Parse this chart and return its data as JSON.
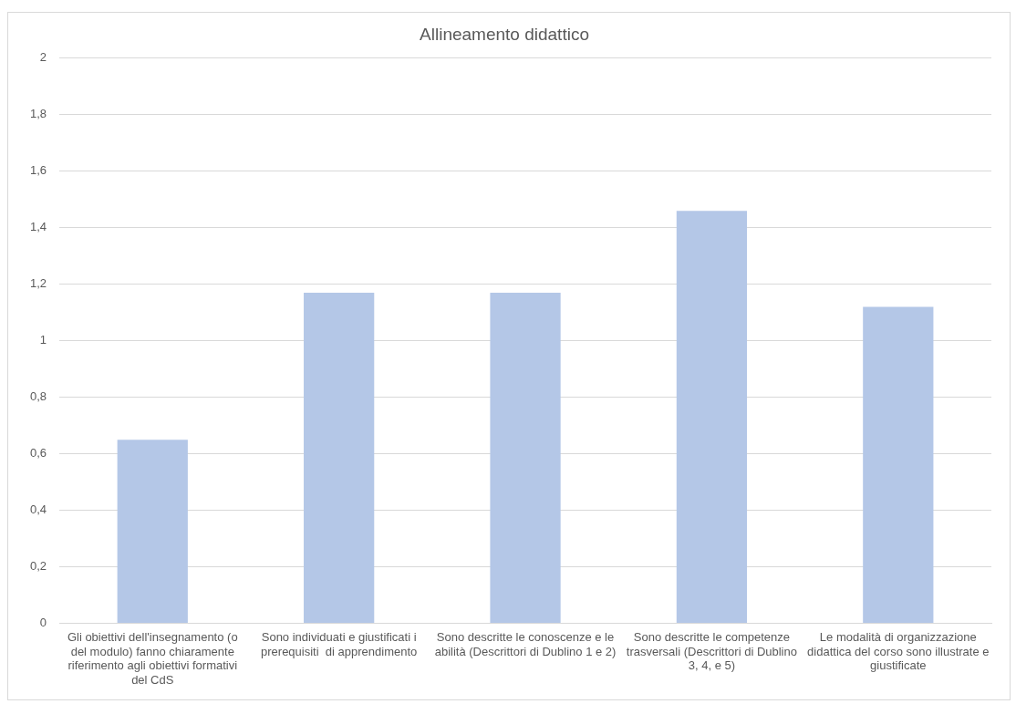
{
  "chart_data": {
    "type": "bar",
    "title": "Allineamento didattico",
    "categories": [
      "Gli obiettivi dell'insegnamento (o del modulo) fanno chiaramente riferimento agli obiettivi formativi del CdS",
      "Sono individuati e giustificati i prerequisiti  di apprendimento",
      "Sono descritte le conoscenze e le abilità (Descrittori di Dublino 1 e 2)",
      "Sono descritte le competenze trasversali (Descrittori di Dublino 3, 4, e 5)",
      "Le modalità di organizzazione didattica del corso sono illustrate e giustificate"
    ],
    "values": [
      0.65,
      1.17,
      1.17,
      1.46,
      1.12
    ],
    "color": "#b4c7e7",
    "ylim": [
      0,
      2
    ],
    "yticks": [
      0,
      {
        "value": 0.2,
        "label": "0,2"
      },
      {
        "value": 0.4,
        "label": "0,4"
      },
      {
        "value": 0.6,
        "label": "0,6"
      },
      {
        "value": 0.8,
        "label": "0,8"
      },
      1,
      {
        "value": 1.2,
        "label": "1,2"
      },
      {
        "value": 1.4,
        "label": "1,4"
      },
      {
        "value": 1.6,
        "label": "1,6"
      },
      {
        "value": 1.8,
        "label": "1,8"
      },
      2
    ],
    "grid": "y"
  }
}
